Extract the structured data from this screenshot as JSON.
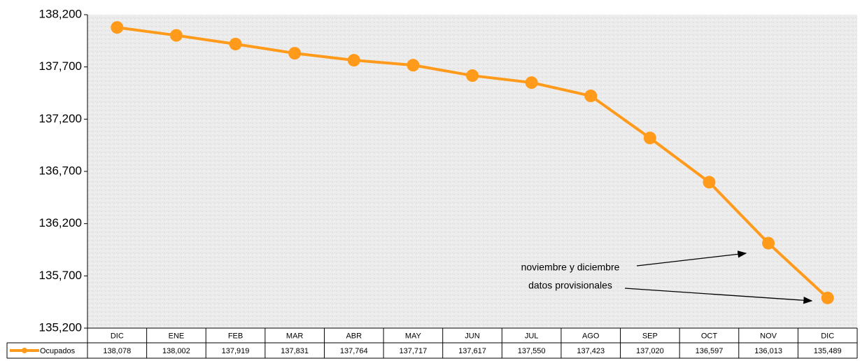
{
  "chart_data": {
    "type": "line",
    "categories": [
      "DIC",
      "ENE",
      "FEB",
      "MAR",
      "ABR",
      "MAY",
      "JUN",
      "JUL",
      "AGO",
      "SEP",
      "OCT",
      "NOV",
      "DIC"
    ],
    "series": [
      {
        "name": "Ocupados",
        "color": "#ff9a1a",
        "values": [
          138078,
          138002,
          137919,
          137831,
          137764,
          137717,
          137617,
          137550,
          137423,
          137020,
          136597,
          136013,
          135489
        ],
        "value_labels": [
          "138,078",
          "138,002",
          "137,919",
          "137,831",
          "137,764",
          "137,717",
          "137,617",
          "137,550",
          "137,423",
          "137,020",
          "136,597",
          "136,013",
          "135,489"
        ]
      }
    ],
    "ylim": [
      135200,
      138200
    ],
    "yticks": [
      {
        "value": 135200,
        "label": "135,200"
      },
      {
        "value": 135700,
        "label": "135,700"
      },
      {
        "value": 136200,
        "label": "136,200"
      },
      {
        "value": 136700,
        "label": "136,700"
      },
      {
        "value": 137200,
        "label": "137,200"
      },
      {
        "value": 137700,
        "label": "137,700"
      },
      {
        "value": 138200,
        "label": "138,200"
      }
    ],
    "annotations": [
      "noviembre y diciembre",
      "datos provisionales"
    ],
    "legend": "data-table"
  }
}
